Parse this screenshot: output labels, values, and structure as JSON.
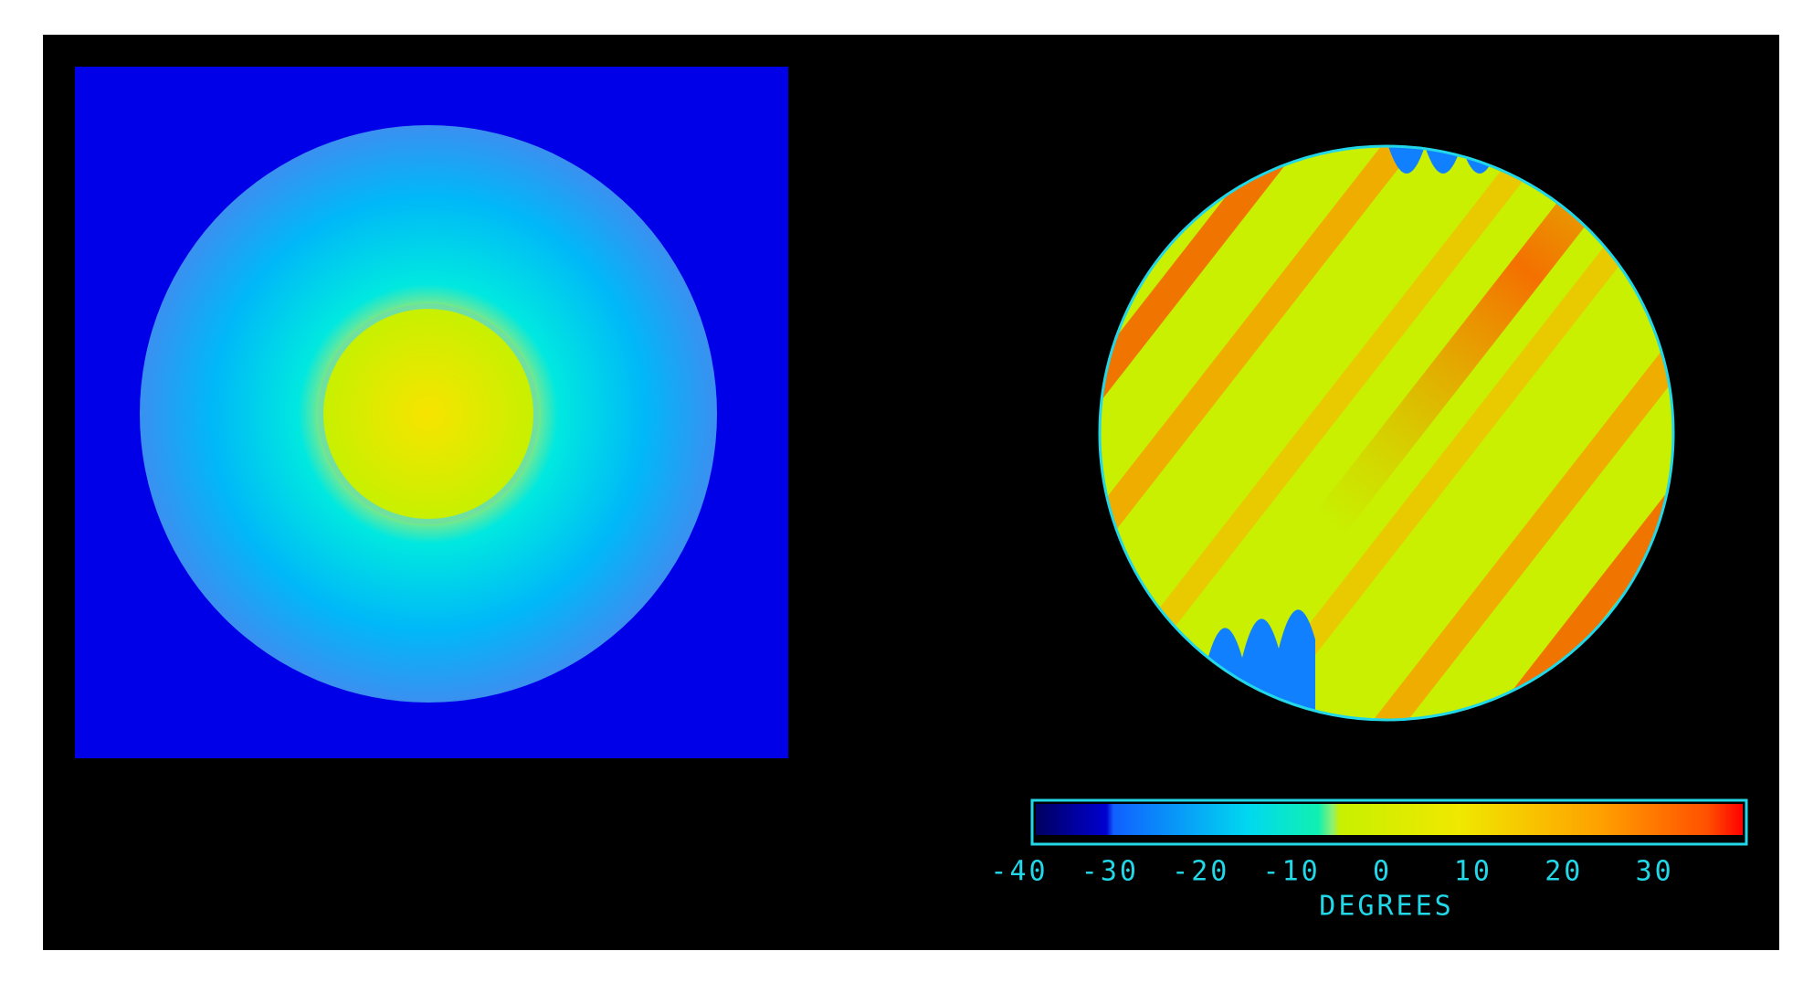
{
  "colorbar": {
    "range": [
      -40,
      40
    ],
    "ticks": [
      -40,
      -30,
      -20,
      -10,
      0,
      10,
      20,
      30
    ],
    "label": "DEGREES"
  }
}
